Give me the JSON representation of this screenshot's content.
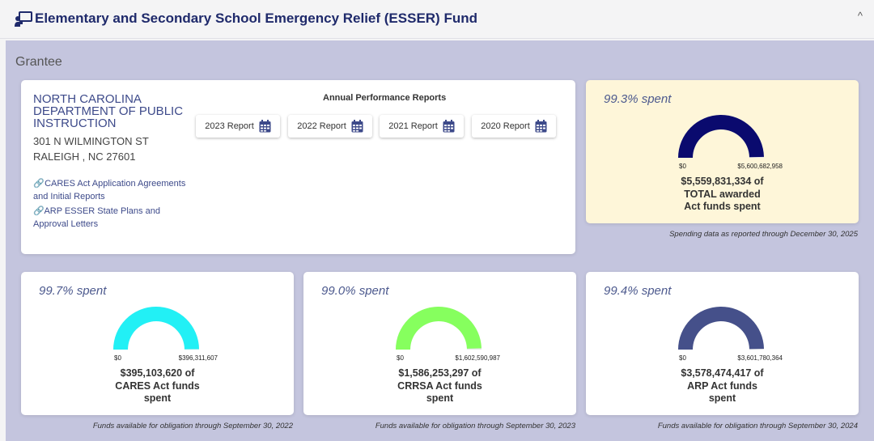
{
  "header": {
    "title": "Elementary and Secondary School Emergency Relief (ESSER) Fund",
    "collapse_symbol": "^",
    "icon": "teacher-board-icon"
  },
  "grantee": {
    "section_label": "Grantee",
    "org_name": "NORTH CAROLINA DEPARTMENT OF PUBLIC INSTRUCTION",
    "address_line1": "301 N WILMINGTON ST",
    "address_line2": "RALEIGH , NC 27601",
    "links": [
      {
        "label": "CARES Act Application Agreements and Initial Reports",
        "icon": "link-icon"
      },
      {
        "label": "ARP ESSER State Plans and Approval Letters",
        "icon": "link-icon"
      }
    ]
  },
  "reports": {
    "title": "Annual Performance Reports",
    "buttons": [
      {
        "label": "2023 Report",
        "icon": "calendar-icon"
      },
      {
        "label": "2022 Report",
        "icon": "calendar-icon"
      },
      {
        "label": "2021 Report",
        "icon": "calendar-icon"
      },
      {
        "label": "2020 Report",
        "icon": "calendar-icon"
      }
    ]
  },
  "gauges": [
    {
      "key": "total",
      "pct_label": "99.3% spent",
      "fraction": 0.993,
      "min_label": "$0",
      "max_label": "$5,600,682,958",
      "amount_lines": [
        "$5,559,831,334 of",
        "TOTAL awarded",
        "Act funds spent"
      ],
      "color": "#0a0a6e",
      "note": "Spending data as reported through December 30, 2025"
    },
    {
      "key": "cares",
      "pct_label": "99.7% spent",
      "fraction": 0.997,
      "min_label": "$0",
      "max_label": "$396,311,607",
      "amount_lines": [
        "$395,103,620 of",
        "CARES Act funds",
        "spent"
      ],
      "color": "#22f0f5",
      "note": "Funds available for obligation through September 30, 2022"
    },
    {
      "key": "crrsa",
      "pct_label": "99.0% spent",
      "fraction": 0.99,
      "min_label": "$0",
      "max_label": "$1,602,590,987",
      "amount_lines": [
        "$1,586,253,297 of",
        "CRRSA Act funds",
        "spent"
      ],
      "color": "#86ff5e",
      "note": "Funds available for obligation through September 30, 2023"
    },
    {
      "key": "arp",
      "pct_label": "99.4% spent",
      "fraction": 0.994,
      "min_label": "$0",
      "max_label": "$3,601,780,364",
      "amount_lines": [
        "$3,578,474,417 of",
        "ARP Act funds",
        "spent"
      ],
      "color": "#45508a",
      "note": "Funds available for obligation through September 30, 2024"
    }
  ]
}
